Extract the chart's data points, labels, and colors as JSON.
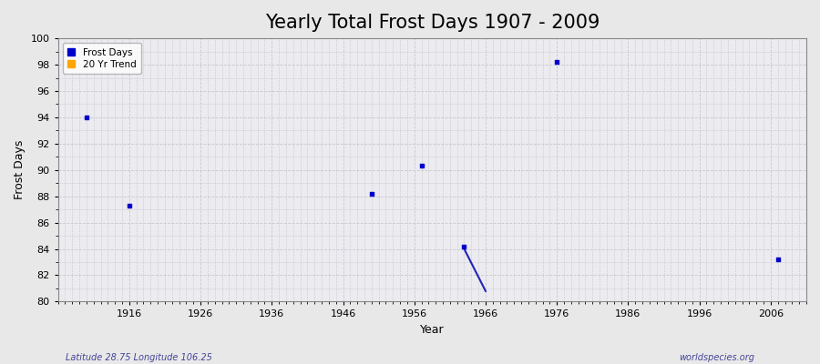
{
  "title": "Yearly Total Frost Days 1907 - 2009",
  "xlabel": "Year",
  "ylabel": "Frost Days",
  "xlim": [
    1906,
    2011
  ],
  "ylim": [
    80,
    100
  ],
  "yticks": [
    80,
    82,
    84,
    86,
    88,
    90,
    92,
    94,
    96,
    98,
    100
  ],
  "xticks": [
    1916,
    1926,
    1936,
    1946,
    1956,
    1966,
    1976,
    1986,
    1996,
    2006
  ],
  "frost_days_x": [
    1910,
    1916,
    1950,
    1957,
    1963,
    1976,
    2007
  ],
  "frost_days_y": [
    94.0,
    87.3,
    88.2,
    90.3,
    84.2,
    98.2,
    83.2
  ],
  "trend_x": [
    1963,
    1966
  ],
  "trend_y": [
    84.0,
    80.8
  ],
  "point_color": "#0000cc",
  "trend_color": "#2222bb",
  "legend_frost_color": "#0000cc",
  "legend_trend_color": "#ffa500",
  "bg_color": "#e8e8e8",
  "plot_bg_color": "#ebebf0",
  "grid_major_color": "#d8d8dc",
  "grid_minor_color": "#d8d8dc",
  "subtitle_left": "Latitude 28.75 Longitude 106.25",
  "subtitle_right": "worldspecies.org",
  "title_fontsize": 15,
  "axis_label_fontsize": 9,
  "tick_fontsize": 8,
  "marker_size": 8
}
